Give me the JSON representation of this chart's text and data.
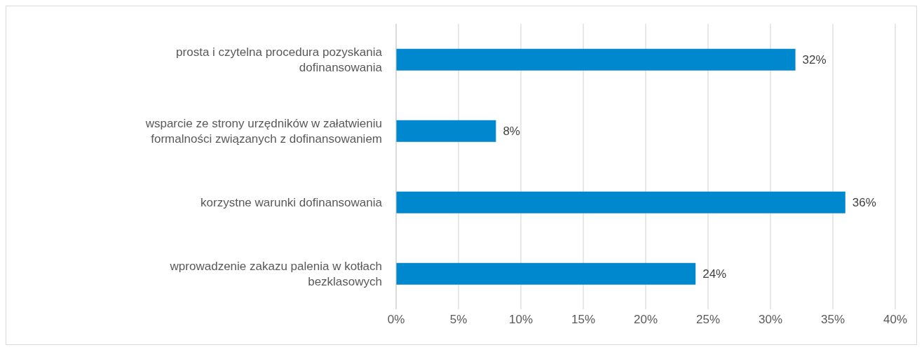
{
  "chart_data": {
    "type": "bar",
    "orientation": "horizontal",
    "categories": [
      "prosta i czytelna procedura pozyskania dofinansowania",
      "wsparcie ze strony urzędników w załatwieniu formalności związanych z dofinansowaniem",
      "korzystne warunki dofinansowania",
      "wprowadzenie zakazu palenia w kotłach bezklasowych"
    ],
    "values": [
      32,
      8,
      36,
      24
    ],
    "value_labels": [
      "32%",
      "8%",
      "36%",
      "24%"
    ],
    "color": "#0088ce",
    "xlim": [
      0,
      40
    ],
    "xticks": [
      {
        "value": 0,
        "label": "0%"
      },
      {
        "value": 5,
        "label": "5%"
      },
      {
        "value": 10,
        "label": "10%"
      },
      {
        "value": 15,
        "label": "15%"
      },
      {
        "value": 20,
        "label": "20%"
      },
      {
        "value": 25,
        "label": "25%"
      },
      {
        "value": 30,
        "label": "30%"
      },
      {
        "value": 35,
        "label": "35%"
      },
      {
        "value": 40,
        "label": "40%"
      }
    ],
    "grid": "x",
    "legend": false
  }
}
